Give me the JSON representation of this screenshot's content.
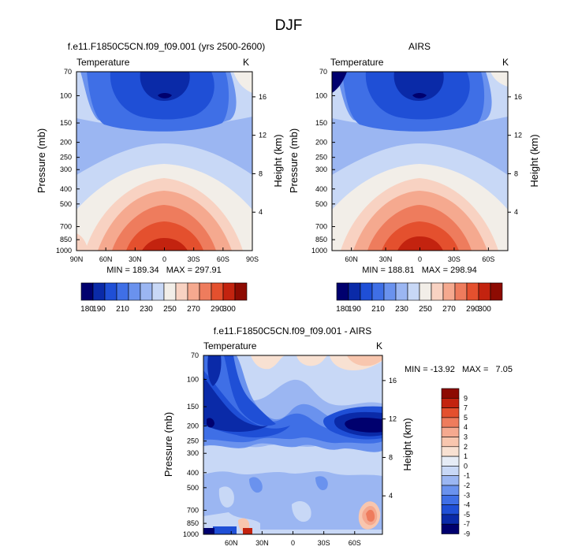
{
  "figure": {
    "title": "DJF"
  },
  "chart_data": [
    {
      "type": "heatmap",
      "title": "f.e11.F1850C5CN.f09_f09.001 (yrs 2500-2600)",
      "left_label": "Temperature",
      "units": "K",
      "xlabel": "",
      "ylabel": "Pressure (mb)",
      "y2label": "Height (km)",
      "x_ticks": [
        "90N",
        "60N",
        "30N",
        "0",
        "30S",
        "60S",
        "90S"
      ],
      "y_ticks": [
        "70",
        "100",
        "150",
        "200",
        "250",
        "300",
        "400",
        "500",
        "700",
        "850",
        "1000"
      ],
      "y2_ticks": [
        "16",
        "12",
        "8",
        "4"
      ],
      "stats": "MIN = 189.34   MAX = 297.91",
      "min": 189.34,
      "max": 297.91,
      "colorbar": {
        "orientation": "horizontal",
        "levels": [
          180,
          190,
          200,
          210,
          220,
          230,
          240,
          250,
          260,
          270,
          280,
          290,
          300
        ],
        "tick_labels": [
          "180",
          "190",
          "210",
          "230",
          "250",
          "270",
          "290",
          "300"
        ]
      }
    },
    {
      "type": "heatmap",
      "title": "AIRS",
      "left_label": "Temperature",
      "units": "K",
      "xlabel": "",
      "ylabel": "Pressure (mb)",
      "y2label": "Height (km)",
      "x_ticks": [
        "60N",
        "30N",
        "0",
        "30S",
        "60S"
      ],
      "y_ticks": [
        "70",
        "100",
        "150",
        "200",
        "250",
        "300",
        "400",
        "500",
        "700",
        "850",
        "1000"
      ],
      "y2_ticks": [
        "16",
        "12",
        "8",
        "4"
      ],
      "stats": "MIN = 188.81   MAX = 298.94",
      "min": 188.81,
      "max": 298.94,
      "colorbar": {
        "orientation": "horizontal",
        "levels": [
          180,
          190,
          200,
          210,
          220,
          230,
          240,
          250,
          260,
          270,
          280,
          290,
          300
        ],
        "tick_labels": [
          "180",
          "190",
          "210",
          "230",
          "250",
          "270",
          "290",
          "300"
        ]
      }
    },
    {
      "type": "heatmap",
      "title": "f.e11.F1850C5CN.f09_f09.001 - AIRS",
      "left_label": "Temperature",
      "units": "K",
      "xlabel": "",
      "ylabel": "Pressure (mb)",
      "y2label": "Height (km)",
      "x_ticks": [
        "60N",
        "30N",
        "0",
        "30S",
        "60S"
      ],
      "y_ticks": [
        "70",
        "100",
        "150",
        "200",
        "250",
        "300",
        "400",
        "500",
        "700",
        "850",
        "1000"
      ],
      "y2_ticks": [
        "16",
        "12",
        "8",
        "4"
      ],
      "stats": "MIN = -13.92   MAX =   7.05",
      "min": -13.92,
      "max": 7.05,
      "colorbar": {
        "orientation": "vertical",
        "levels": [
          -9,
          -7,
          -5,
          -4,
          -3,
          -2,
          -1,
          0,
          1,
          2,
          3,
          4,
          5,
          7,
          9
        ],
        "tick_labels": [
          "9",
          "7",
          "5",
          "4",
          "3",
          "2",
          "1",
          "0",
          "-1",
          "-2",
          "-3",
          "-4",
          "-5",
          "-7",
          "-9"
        ]
      }
    }
  ],
  "colors": {
    "temperature_scale": [
      "#00006e",
      "#0a2aa8",
      "#1f4fd6",
      "#3f6fe6",
      "#6a92ee",
      "#9bb6f2",
      "#c8d8f6",
      "#f2eee8",
      "#f8d2c2",
      "#f5a98f",
      "#ee7c5d",
      "#e4502e",
      "#c3230f",
      "#8d0b02"
    ],
    "difference_scale": [
      "#00006e",
      "#0a2aa8",
      "#1f4fd6",
      "#3f6fe6",
      "#6a92ee",
      "#9bb6f2",
      "#c8d8f6",
      "#e6ecf6",
      "#f8e1d2",
      "#f8c6ae",
      "#f5a98f",
      "#ee7c5d",
      "#e4502e",
      "#c3230f",
      "#8d0b02"
    ]
  }
}
